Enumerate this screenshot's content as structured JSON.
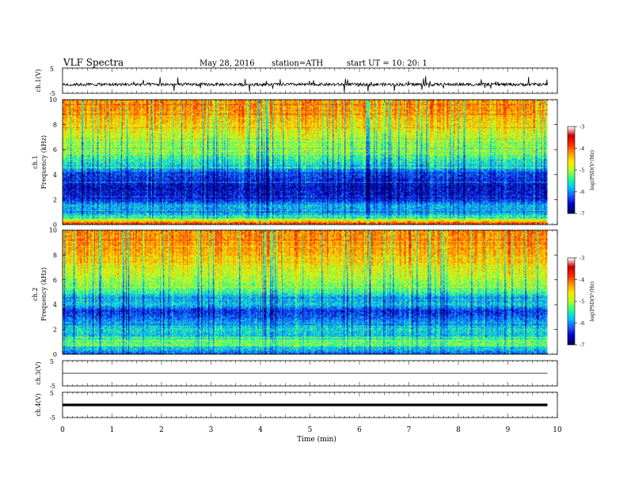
{
  "header": {
    "title": "VLF  Spectra",
    "date": "May 28, 2016",
    "station": "station=ATH",
    "start": "start  UT  =    10: 20: 1"
  },
  "colors": {
    "colormap": [
      "#00005a",
      "#0000c8",
      "#1e5aff",
      "#00c8ff",
      "#28ff8c",
      "#b4ff28",
      "#ffe600",
      "#ff9600",
      "#ff2800",
      "#c80000",
      "#ffffff"
    ]
  },
  "chart_data": [
    {
      "type": "line",
      "name": "ch1-waveform",
      "ylabel": "ch.1(V)",
      "ylim": [
        -5,
        5
      ],
      "yticks": [
        "5",
        "-5"
      ],
      "x_range": [
        0,
        9.8
      ],
      "baseline": -1.5,
      "noise_amplitude": 0.6,
      "spike_amplitude": 3
    },
    {
      "type": "heatmap",
      "name": "ch1-spectrogram",
      "ylabel": "ch.1\nFrequency  (kHz)",
      "ylim": [
        0,
        10
      ],
      "yticks": [
        "0",
        "2",
        "4",
        "6",
        "8",
        "10"
      ],
      "x_range": [
        0,
        9.8
      ],
      "value_label": "log(PSD(V²/Hz)",
      "value_range": [
        -7,
        -3
      ],
      "colorbar_ticks": [
        "-3",
        "-4",
        "-5",
        "-6",
        "-7"
      ],
      "band_profile_log_psd": [
        {
          "f": 0.0,
          "v": -3.6
        },
        {
          "f": 0.5,
          "v": -5.4
        },
        {
          "f": 1.0,
          "v": -6.0
        },
        {
          "f": 1.5,
          "v": -5.8
        },
        {
          "f": 2.0,
          "v": -6.5
        },
        {
          "f": 3.0,
          "v": -6.6
        },
        {
          "f": 4.0,
          "v": -6.3
        },
        {
          "f": 4.5,
          "v": -5.9
        },
        {
          "f": 5.0,
          "v": -5.5
        },
        {
          "f": 6.0,
          "v": -5.2
        },
        {
          "f": 7.0,
          "v": -4.9
        },
        {
          "f": 8.0,
          "v": -4.6
        },
        {
          "f": 9.0,
          "v": -4.3
        },
        {
          "f": 10.0,
          "v": -4.2
        }
      ]
    },
    {
      "type": "heatmap",
      "name": "ch2-spectrogram",
      "ylabel": "ch.2\nFrequency  (kHz)",
      "ylim": [
        0,
        10
      ],
      "yticks": [
        "0",
        "2",
        "4",
        "6",
        "8",
        "10"
      ],
      "x_range": [
        0,
        9.8
      ],
      "value_label": "log(PSD(V²/Hz)",
      "value_range": [
        -7,
        -3
      ],
      "colorbar_ticks": [
        "-3",
        "-4",
        "-5",
        "-6",
        "-7"
      ],
      "band_profile_log_psd": [
        {
          "f": 0.0,
          "v": -6.2
        },
        {
          "f": 0.5,
          "v": -5.6
        },
        {
          "f": 1.0,
          "v": -5.1
        },
        {
          "f": 1.5,
          "v": -5.8
        },
        {
          "f": 2.0,
          "v": -5.6
        },
        {
          "f": 3.0,
          "v": -6.2
        },
        {
          "f": 3.5,
          "v": -6.4
        },
        {
          "f": 4.0,
          "v": -5.7
        },
        {
          "f": 4.5,
          "v": -6.0
        },
        {
          "f": 5.0,
          "v": -5.4
        },
        {
          "f": 6.0,
          "v": -5.0
        },
        {
          "f": 7.0,
          "v": -4.7
        },
        {
          "f": 8.0,
          "v": -4.4
        },
        {
          "f": 9.0,
          "v": -4.2
        },
        {
          "f": 10.0,
          "v": -4.2
        }
      ]
    },
    {
      "type": "line",
      "name": "ch3-waveform",
      "ylabel": "ch.3(V)",
      "ylim": [
        -5,
        5
      ],
      "yticks": [
        "5",
        "-5"
      ],
      "x_range": [
        0,
        9.8
      ],
      "baseline": 0
    },
    {
      "type": "line",
      "name": "ch4-waveform",
      "ylabel": "ch.4(V)",
      "ylim": [
        -5,
        5
      ],
      "yticks": [
        "5",
        "-5"
      ],
      "x_range": [
        0,
        9.8
      ],
      "baseline": 0,
      "band_width": 0.5
    }
  ],
  "xaxis": {
    "label": "Time  (min)",
    "range": [
      0,
      10
    ],
    "tick_labels": [
      "0",
      "1",
      "2",
      "3",
      "4",
      "5",
      "6",
      "7",
      "8",
      "9",
      "10"
    ]
  }
}
